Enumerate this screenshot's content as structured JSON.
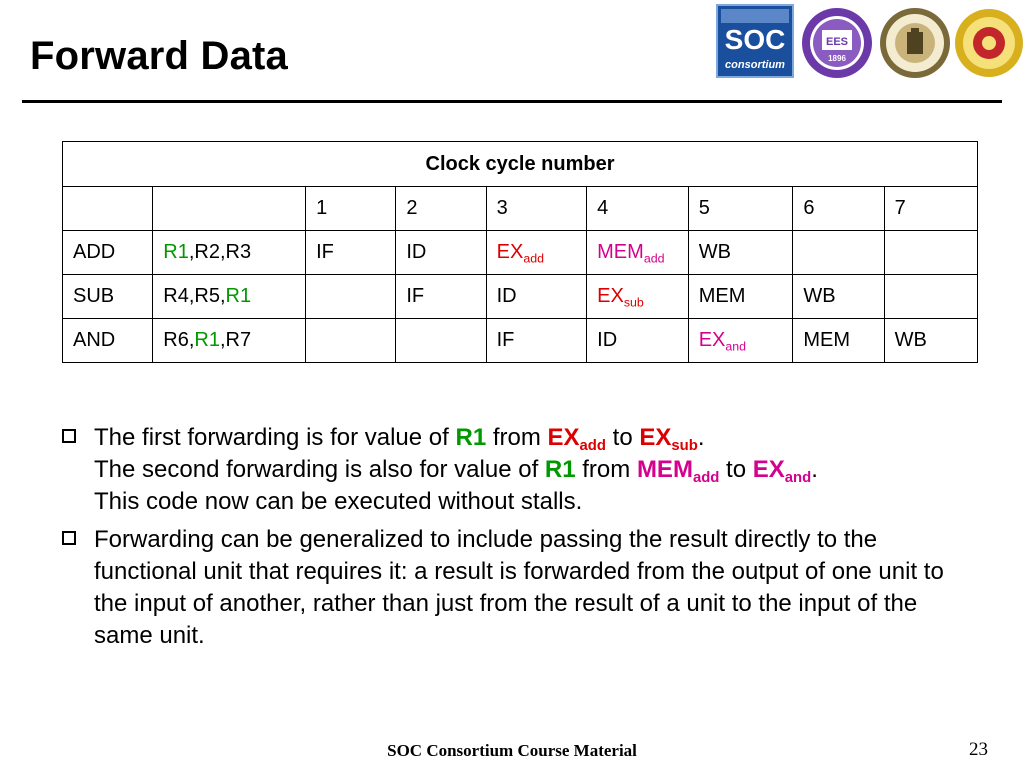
{
  "slide": {
    "title": "Forward Data",
    "logos": [
      "soc-consortium-logo",
      "ees-1896-logo",
      "university-seal-logo",
      "institute-emblem-logo"
    ],
    "logo_text": {
      "soc": "SOC",
      "consortium": "consortium",
      "ees": "EES",
      "year": "1896"
    }
  },
  "table": {
    "header": "Clock cycle number",
    "cycles": [
      "1",
      "2",
      "3",
      "4",
      "5",
      "6",
      "7"
    ],
    "rows": [
      {
        "op": "ADD",
        "reg_a": "R1",
        "reg_b": ",R2,R3",
        "c1": "IF",
        "c2": "ID",
        "c3": "EX",
        "c3_sub": "add",
        "c4": "MEM",
        "c4_sub": "add",
        "c5": "WB"
      },
      {
        "op": "SUB",
        "reg_a": "R4,R5,",
        "reg_b": "R1",
        "c2": "IF",
        "c3": "ID",
        "c4": "EX",
        "c4_sub": "sub",
        "c5": "MEM",
        "c6": "WB"
      },
      {
        "op": "AND",
        "reg_a": "R6,",
        "reg_b": "R1",
        "reg_c": ",R7",
        "c3": "IF",
        "c4": "ID",
        "c5": "EX",
        "c5_sub": "and",
        "c6": "MEM",
        "c7": "WB"
      }
    ]
  },
  "bullets": {
    "first": {
      "t1": "The first forwarding is for value of ",
      "r1": "R1",
      "t2": " from ",
      "ex": "EX",
      "ex_sub": "add",
      "t3": " to ",
      "ex2": "EX",
      "ex2_sub": "sub",
      "t4": ".",
      "t5": "The second forwarding is also for value of ",
      "r1b": "R1",
      "t6": " from ",
      "mem": "MEM",
      "mem_sub": "add",
      "t7": " to ",
      "ex3": "EX",
      "ex3_sub": "and",
      "t8": ".",
      "t9": "This code now can be executed without stalls."
    },
    "second": "Forwarding can be generalized to include passing the result directly to the functional unit that requires it: a result is forwarded from the output of one unit to the input of another, rather than just from the result of a unit to the input of the same unit."
  },
  "footer": {
    "text": "SOC Consortium Course Material",
    "page": "23"
  },
  "colors": {
    "green": "#009900",
    "red": "#dd0000",
    "magenta": "#d4008e"
  }
}
